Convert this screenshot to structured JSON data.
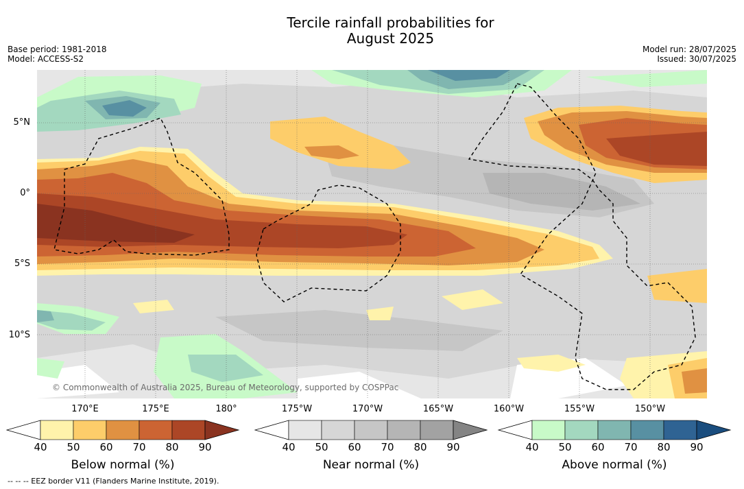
{
  "title": {
    "line1": "Tercile rainfall probabilities for",
    "line2": "August 2025"
  },
  "meta": {
    "base_period": "Base period: 1981-2018",
    "model": "Model: ACCESS-S2",
    "model_run": "Model run: 28/07/2025",
    "issued": "Issued: 30/07/2025"
  },
  "latitude_labels": [
    "5°N",
    "0°",
    "5°S",
    "10°S"
  ],
  "longitude_labels": [
    "170°E",
    "175°E",
    "180°",
    "175°W",
    "170°W",
    "165°W",
    "160°W",
    "155°W",
    "150°W"
  ],
  "copyright": "© Commonwealth of Australia 2025, Bureau of Meteorology, supported by COSPPac",
  "footnote": "-- -- -- EEZ border V11 (Flanders Marine Institute, 2019).",
  "legends": [
    {
      "label": "Below normal (%)",
      "ticks": [
        "40",
        "50",
        "60",
        "70",
        "80",
        "90"
      ],
      "colors": [
        "#fff3ab",
        "#fdcd6a",
        "#e09142",
        "#cc6433",
        "#ac4626",
        "#8a3320"
      ]
    },
    {
      "label": "Near normal (%)",
      "ticks": [
        "40",
        "50",
        "60",
        "70",
        "80",
        "90"
      ],
      "colors": [
        "#e6e6e6",
        "#d6d6d6",
        "#c6c6c6",
        "#b5b5b5",
        "#a2a2a2",
        "#848484"
      ]
    },
    {
      "label": "Above normal (%)",
      "ticks": [
        "40",
        "50",
        "60",
        "70",
        "80",
        "90"
      ],
      "colors": [
        "#c8fac8",
        "#a3d8bf",
        "#80b6b0",
        "#5890a2",
        "#2f6393",
        "#1a4d7e"
      ]
    }
  ],
  "map_colors": {
    "below_40": "#fff3ab",
    "below_50": "#fdcd6a",
    "below_60": "#e09142",
    "below_70": "#cc6433",
    "below_80": "#ac4626",
    "near_40": "#e6e6e6",
    "near_50": "#d6d6d6",
    "near_60": "#c6c6c6",
    "near_70": "#b5b5b5",
    "above_40": "#c8fac8",
    "above_50": "#a3d8bf",
    "above_60": "#80b6b0",
    "above_70": "#5890a2"
  }
}
